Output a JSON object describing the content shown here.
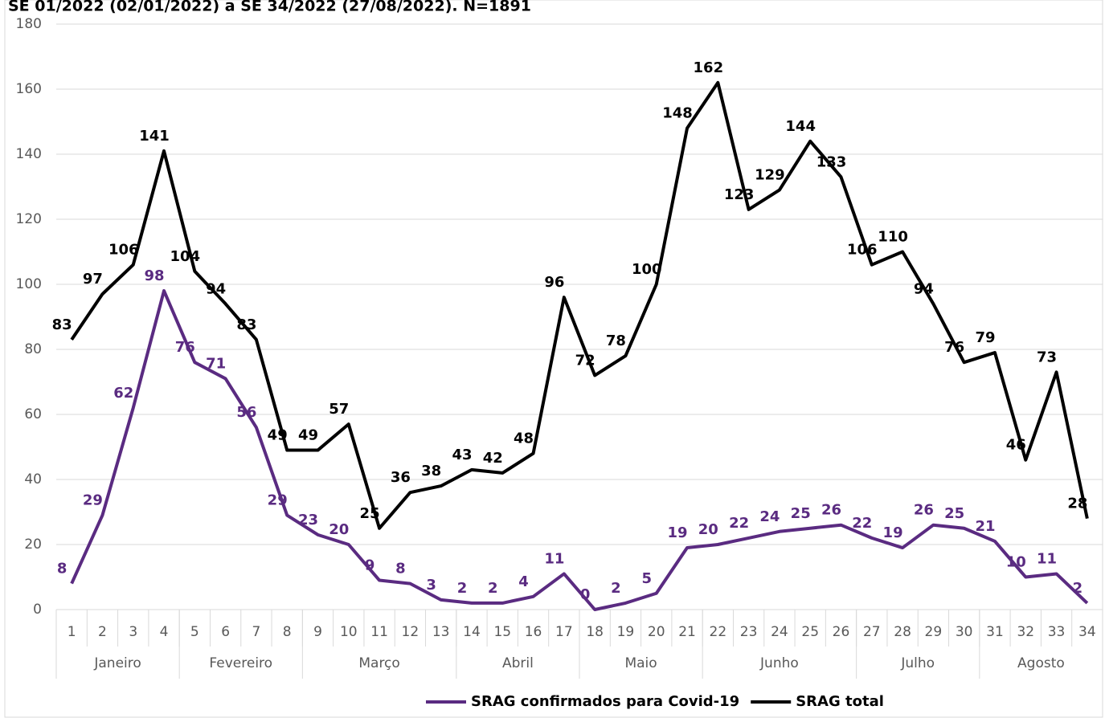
{
  "chart_data": {
    "type": "line",
    "title": "SE 01/2022 (02/01/2022) a SE 34/2022 (27/08/2022). N=1891",
    "category_groups": [
      {
        "label": "Janeiro",
        "categories": [
          1,
          2,
          3,
          4
        ]
      },
      {
        "label": "Fevereiro",
        "categories": [
          5,
          6,
          7,
          8
        ]
      },
      {
        "label": "Março",
        "categories": [
          9,
          10,
          11,
          12,
          13
        ]
      },
      {
        "label": "Abril",
        "categories": [
          14,
          15,
          16,
          17
        ]
      },
      {
        "label": "Maio",
        "categories": [
          18,
          19,
          20,
          21
        ]
      },
      {
        "label": "Junho",
        "categories": [
          22,
          23,
          24,
          25,
          26
        ]
      },
      {
        "label": "Julho",
        "categories": [
          27,
          28,
          29,
          30
        ]
      },
      {
        "label": "Agosto",
        "categories": [
          31,
          32,
          33,
          34
        ]
      }
    ],
    "series": [
      {
        "name": "SRAG confirmados para Covid-19",
        "color": "#5a2b81",
        "values": [
          8,
          29,
          62,
          98,
          76,
          71,
          56,
          29,
          23,
          20,
          9,
          8,
          3,
          2,
          2,
          4,
          11,
          0,
          2,
          5,
          19,
          20,
          22,
          24,
          25,
          26,
          22,
          19,
          26,
          25,
          21,
          10,
          11,
          2
        ]
      },
      {
        "name": "SRAG total",
        "color": "#000000",
        "values": [
          83,
          97,
          106,
          141,
          104,
          94,
          83,
          49,
          49,
          57,
          25,
          36,
          38,
          43,
          42,
          48,
          96,
          72,
          78,
          100,
          148,
          162,
          123,
          129,
          144,
          133,
          106,
          110,
          94,
          76,
          79,
          46,
          73,
          28
        ]
      }
    ],
    "ylim": [
      0,
      180
    ],
    "yticks": [
      0,
      20,
      40,
      60,
      80,
      100,
      120,
      140,
      160,
      180
    ],
    "grid": true
  }
}
